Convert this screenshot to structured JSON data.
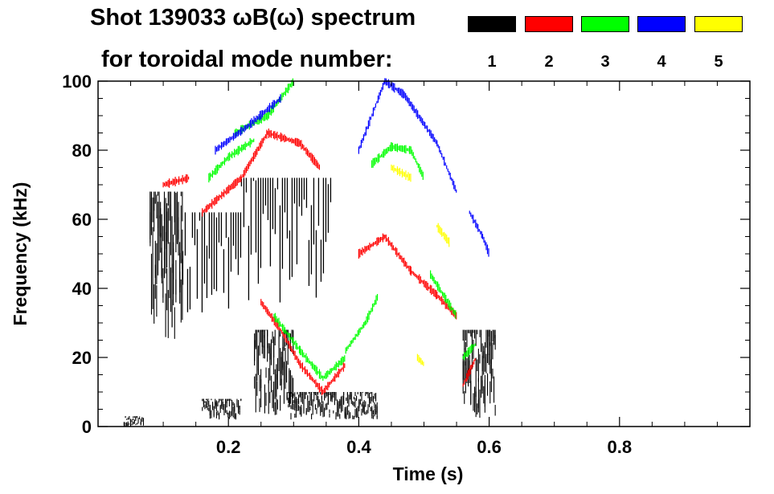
{
  "chart_data": {
    "type": "scatter",
    "title": "Shot 139033 ωB(ω) spectrum",
    "legend_title": "for toroidal mode number:",
    "xlabel": "Time (s)",
    "ylabel": "Frequency (kHz)",
    "xlim": [
      0.0,
      1.0
    ],
    "ylim": [
      0,
      100
    ],
    "x_ticks": [
      0.2,
      0.4,
      0.6,
      0.8
    ],
    "y_ticks": [
      0,
      20,
      40,
      60,
      80,
      100
    ],
    "legend": [
      {
        "label": "1",
        "color": "#000000"
      },
      {
        "label": "2",
        "color": "#ff0000"
      },
      {
        "label": "3",
        "color": "#00ff00"
      },
      {
        "label": "4",
        "color": "#0000ff"
      },
      {
        "label": "5",
        "color": "#ffff00"
      }
    ],
    "series": [
      {
        "name": "n=1",
        "color": "#000000",
        "regions": [
          {
            "t0": 0.08,
            "t1": 0.13,
            "f0": 25,
            "f1": 68,
            "style": "blob"
          },
          {
            "t0": 0.13,
            "t1": 0.22,
            "f0": 30,
            "f1": 62,
            "style": "stripes"
          },
          {
            "t0": 0.22,
            "t1": 0.36,
            "f0": 35,
            "f1": 72,
            "style": "stripes"
          },
          {
            "t0": 0.24,
            "t1": 0.3,
            "f0": 3,
            "f1": 28,
            "style": "blob"
          },
          {
            "t0": 0.29,
            "t1": 0.43,
            "f0": 2,
            "f1": 10,
            "style": "blob"
          },
          {
            "t0": 0.16,
            "t1": 0.22,
            "f0": 2,
            "f1": 8,
            "style": "blob"
          },
          {
            "t0": 0.56,
            "t1": 0.61,
            "f0": 2,
            "f1": 28,
            "style": "blob"
          },
          {
            "t0": 0.04,
            "t1": 0.07,
            "f0": 0,
            "f1": 3,
            "style": "blob"
          }
        ]
      },
      {
        "name": "n=2",
        "color": "#ff0000",
        "curves": [
          {
            "t": [
              0.1,
              0.14
            ],
            "f": [
              70,
              72
            ]
          },
          {
            "t": [
              0.16,
              0.22,
              0.26,
              0.31,
              0.34
            ],
            "f": [
              62,
              72,
              85,
              82,
              75
            ]
          },
          {
            "t": [
              0.25,
              0.28,
              0.31,
              0.345,
              0.38
            ],
            "f": [
              36,
              28,
              18,
              10,
              18
            ]
          },
          {
            "t": [
              0.4,
              0.44,
              0.48,
              0.52,
              0.55
            ],
            "f": [
              50,
              55,
              45,
              38,
              32
            ]
          },
          {
            "t": [
              0.56,
              0.58
            ],
            "f": [
              12,
              20
            ]
          }
        ]
      },
      {
        "name": "n=3",
        "color": "#00ff00",
        "curves": [
          {
            "t": [
              0.17,
              0.2,
              0.24
            ],
            "f": [
              72,
              78,
              83
            ]
          },
          {
            "t": [
              0.21,
              0.26,
              0.3
            ],
            "f": [
              85,
              90,
              100
            ]
          },
          {
            "t": [
              0.27,
              0.31,
              0.345,
              0.38
            ],
            "f": [
              32,
              22,
              14,
              20
            ]
          },
          {
            "t": [
              0.38,
              0.41,
              0.43
            ],
            "f": [
              22,
              30,
              38
            ]
          },
          {
            "t": [
              0.42,
              0.45,
              0.48,
              0.5
            ],
            "f": [
              76,
              81,
              80,
              72
            ]
          },
          {
            "t": [
              0.51,
              0.53,
              0.55
            ],
            "f": [
              44,
              38,
              32
            ]
          },
          {
            "t": [
              0.56,
              0.58
            ],
            "f": [
              20,
              24
            ]
          }
        ]
      },
      {
        "name": "n=4",
        "color": "#0000ff",
        "curves": [
          {
            "t": [
              0.18,
              0.23,
              0.28
            ],
            "f": [
              80,
              87,
              95
            ]
          },
          {
            "t": [
              0.4,
              0.44,
              0.47,
              0.52,
              0.55
            ],
            "f": [
              80,
              100,
              96,
              82,
              68
            ]
          },
          {
            "t": [
              0.57,
              0.59,
              0.6
            ],
            "f": [
              62,
              55,
              50
            ]
          }
        ]
      },
      {
        "name": "n=5",
        "color": "#ffff00",
        "curves": [
          {
            "t": [
              0.45,
              0.48
            ],
            "f": [
              75,
              72
            ]
          },
          {
            "t": [
              0.52,
              0.54
            ],
            "f": [
              58,
              53
            ]
          },
          {
            "t": [
              0.49,
              0.5
            ],
            "f": [
              20,
              18
            ]
          }
        ]
      }
    ]
  }
}
